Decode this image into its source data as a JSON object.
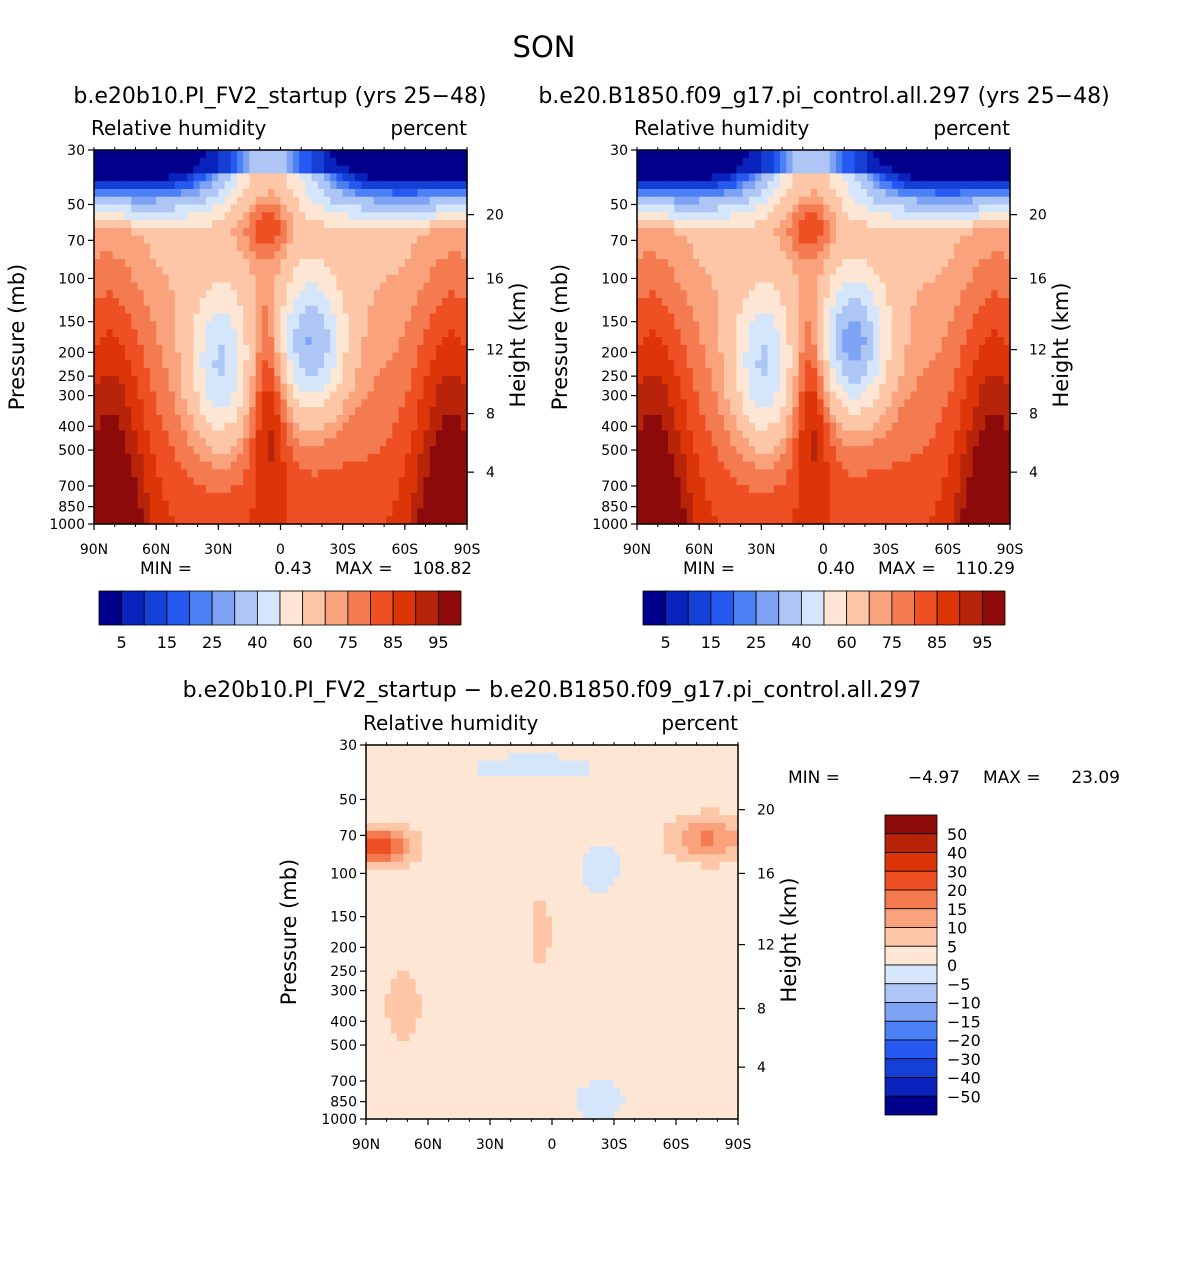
{
  "figure_title": "SON",
  "chart_data": [
    {
      "type": "heatmap",
      "title": "b.e20b10.PI_FV2_startup (yrs 25−48)",
      "left_label": "Relative humidity",
      "right_label": "percent",
      "ylabel": "Pressure (mb)",
      "ylabel_right": "Height (km)",
      "x_ticks": [
        "90N",
        "60N",
        "30N",
        "0",
        "30S",
        "60S",
        "90S"
      ],
      "y_ticks": [
        "30",
        "50",
        "70",
        "100",
        "150",
        "200",
        "250",
        "300",
        "400",
        "500",
        "700",
        "850",
        "1000"
      ],
      "height_ticks": [
        "20",
        "16",
        "12",
        "8",
        "4"
      ],
      "ylim": [
        1000,
        30
      ],
      "min_label": "MIN =",
      "min_value": "0.43",
      "max_label": "MAX =",
      "max_value": "108.82",
      "colorbar_ticks": [
        "5",
        "15",
        "25",
        "40",
        "60",
        "75",
        "85",
        "95"
      ]
    },
    {
      "type": "heatmap",
      "title": "b.e20.B1850.f09_g17.pi_control.all.297 (yrs 25−48)",
      "left_label": "Relative humidity",
      "right_label": "percent",
      "ylabel": "Pressure (mb)",
      "ylabel_right": "Height (km)",
      "x_ticks": [
        "90N",
        "60N",
        "30N",
        "0",
        "30S",
        "60S",
        "90S"
      ],
      "y_ticks": [
        "30",
        "50",
        "70",
        "100",
        "150",
        "200",
        "250",
        "300",
        "400",
        "500",
        "700",
        "850",
        "1000"
      ],
      "height_ticks": [
        "20",
        "16",
        "12",
        "8",
        "4"
      ],
      "ylim": [
        1000,
        30
      ],
      "min_label": "MIN =",
      "min_value": "0.40",
      "max_label": "MAX =",
      "max_value": "110.29",
      "colorbar_ticks": [
        "5",
        "15",
        "25",
        "40",
        "60",
        "75",
        "85",
        "95"
      ]
    },
    {
      "type": "heatmap",
      "title": "b.e20b10.PI_FV2_startup − b.e20.B1850.f09_g17.pi_control.all.297",
      "left_label": "Relative humidity",
      "right_label": "percent",
      "ylabel": "Pressure (mb)",
      "ylabel_right": "Height (km)",
      "x_ticks": [
        "90N",
        "60N",
        "30N",
        "0",
        "30S",
        "60S",
        "90S"
      ],
      "y_ticks": [
        "30",
        "50",
        "70",
        "100",
        "150",
        "200",
        "250",
        "300",
        "400",
        "500",
        "700",
        "850",
        "1000"
      ],
      "height_ticks": [
        "20",
        "16",
        "12",
        "8",
        "4"
      ],
      "ylim": [
        1000,
        30
      ],
      "min_label": "MIN =",
      "min_value": "−4.97",
      "max_label": "MAX =",
      "max_value": "23.09",
      "colorbar_ticks": [
        "50",
        "40",
        "30",
        "20",
        "15",
        "10",
        "5",
        "0",
        "−5",
        "−10",
        "−15",
        "−20",
        "−30",
        "−40",
        "−50"
      ]
    }
  ],
  "colors": {
    "abs_levels": [
      "#00008c",
      "#0a23bd",
      "#1440d6",
      "#2659f2",
      "#4c80f5",
      "#7ea3f5",
      "#aec6f5",
      "#d6e6fa",
      "#fde6d4",
      "#fcc6a7",
      "#f9a27c",
      "#f47a50",
      "#ee5024",
      "#dc3508",
      "#b8240a",
      "#8c0a0a"
    ],
    "diff_levels": [
      "#8c0a0a",
      "#b8240a",
      "#dc3508",
      "#ee5024",
      "#f47a50",
      "#f9a27c",
      "#fcc6a7",
      "#fde6d4",
      "#d6e6fa",
      "#aec6f5",
      "#7ea3f5",
      "#4c80f5",
      "#2659f2",
      "#1440d6",
      "#0a23bd",
      "#00008c"
    ]
  }
}
